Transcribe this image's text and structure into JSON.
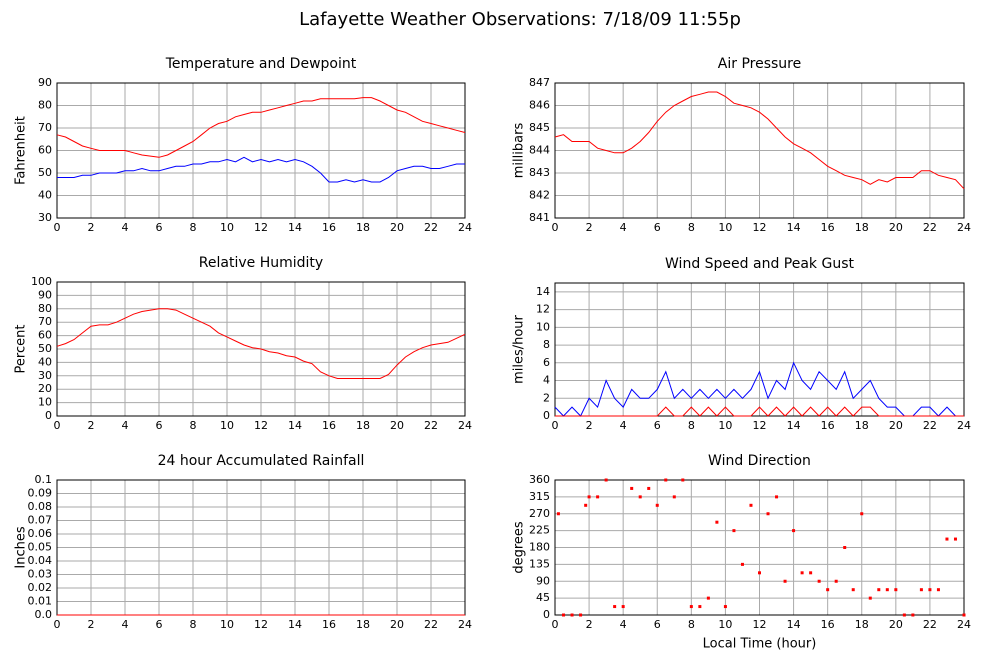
{
  "title": "Lafayette Weather Observations: 7/18/09 11:55p",
  "chart_data": [
    {
      "type": "line",
      "title": "Temperature and Dewpoint",
      "y_label": "Fahrenheit",
      "x": [
        0,
        0.5,
        1,
        1.5,
        2,
        2.5,
        3,
        3.5,
        4,
        4.5,
        5,
        5.5,
        6,
        6.5,
        7,
        7.5,
        8,
        8.5,
        9,
        9.5,
        10,
        10.5,
        11,
        11.5,
        12,
        12.5,
        13,
        13.5,
        14,
        14.5,
        15,
        15.5,
        16,
        16.5,
        17,
        17.5,
        18,
        18.5,
        19,
        19.5,
        20,
        20.5,
        21,
        21.5,
        22,
        22.5,
        23,
        23.5,
        24
      ],
      "series": [
        {
          "color": "#ff0000",
          "values": [
            67,
            66,
            64,
            62,
            61,
            60,
            60,
            60,
            60,
            59,
            58,
            57.5,
            57,
            58,
            60,
            62,
            64,
            67,
            70,
            72,
            73,
            75,
            76,
            77,
            77,
            78,
            79,
            80,
            81,
            82,
            82,
            83,
            83,
            83,
            83,
            83,
            83.5,
            83.5,
            82,
            80,
            78,
            77,
            75,
            73,
            72,
            71,
            70,
            69,
            68
          ]
        },
        {
          "color": "#0000ff",
          "values": [
            48,
            48,
            48,
            49,
            49,
            50,
            50,
            50,
            51,
            51,
            52,
            51,
            51,
            52,
            53,
            53,
            54,
            54,
            55,
            55,
            56,
            55,
            57,
            55,
            56,
            55,
            56,
            55,
            56,
            55,
            53,
            50,
            46,
            46,
            47,
            46,
            47,
            46,
            46,
            48,
            51,
            52,
            53,
            53,
            52,
            52,
            53,
            54,
            54
          ]
        }
      ],
      "xlim": [
        0,
        24
      ],
      "xticks": [
        0,
        2,
        4,
        6,
        8,
        10,
        12,
        14,
        16,
        18,
        20,
        22,
        24
      ],
      "ylim": [
        30,
        90
      ],
      "yticks": [
        30,
        40,
        50,
        60,
        70,
        80,
        90
      ],
      "grid": true
    },
    {
      "type": "line",
      "title": "Air Pressure",
      "y_label": "millibars",
      "x": [
        0,
        0.5,
        1,
        1.5,
        2,
        2.5,
        3,
        3.5,
        4,
        4.5,
        5,
        5.5,
        6,
        6.5,
        7,
        7.5,
        8,
        8.5,
        9,
        9.5,
        10,
        10.5,
        11,
        11.5,
        12,
        12.5,
        13,
        13.5,
        14,
        14.5,
        15,
        15.5,
        16,
        16.5,
        17,
        17.5,
        18,
        18.5,
        19,
        19.5,
        20,
        20.5,
        21,
        21.5,
        22,
        22.5,
        23,
        23.5,
        24
      ],
      "series": [
        {
          "color": "#ff0000",
          "values": [
            844.6,
            844.7,
            844.4,
            844.4,
            844.4,
            844.1,
            844.0,
            843.9,
            843.9,
            844.1,
            844.4,
            844.8,
            845.3,
            845.7,
            846.0,
            846.2,
            846.4,
            846.5,
            846.6,
            846.6,
            846.4,
            846.1,
            846.0,
            845.9,
            845.7,
            845.4,
            845.0,
            844.6,
            844.3,
            844.1,
            843.9,
            843.6,
            843.3,
            843.1,
            842.9,
            842.8,
            842.7,
            842.5,
            842.7,
            842.6,
            842.8,
            842.8,
            842.8,
            843.1,
            843.1,
            842.9,
            842.8,
            842.7,
            842.3
          ]
        }
      ],
      "xlim": [
        0,
        24
      ],
      "xticks": [
        0,
        2,
        4,
        6,
        8,
        10,
        12,
        14,
        16,
        18,
        20,
        22,
        24
      ],
      "ylim": [
        841,
        847
      ],
      "yticks": [
        841,
        842,
        843,
        844,
        845,
        846,
        847
      ],
      "grid": true
    },
    {
      "type": "line",
      "title": "Relative Humidity",
      "y_label": "Percent",
      "x": [
        0,
        0.5,
        1,
        1.5,
        2,
        2.5,
        3,
        3.5,
        4,
        4.5,
        5,
        5.5,
        6,
        6.5,
        7,
        7.5,
        8,
        8.5,
        9,
        9.5,
        10,
        10.5,
        11,
        11.5,
        12,
        12.5,
        13,
        13.5,
        14,
        14.5,
        15,
        15.5,
        16,
        16.5,
        17,
        17.5,
        18,
        18.5,
        19,
        19.5,
        20,
        20.5,
        21,
        21.5,
        22,
        22.5,
        23,
        23.5,
        24
      ],
      "series": [
        {
          "color": "#ff0000",
          "values": [
            52,
            54,
            57,
            62,
            67,
            68,
            68,
            70,
            73,
            76,
            78,
            79,
            80,
            80,
            79,
            76,
            73,
            70,
            67,
            62,
            59,
            56,
            53,
            51,
            50,
            48,
            47,
            45,
            44,
            41,
            39,
            33,
            30,
            28,
            28,
            28,
            28,
            28,
            28,
            31,
            38,
            44,
            48,
            51,
            53,
            54,
            55,
            58,
            61
          ]
        }
      ],
      "xlim": [
        0,
        24
      ],
      "xticks": [
        0,
        2,
        4,
        6,
        8,
        10,
        12,
        14,
        16,
        18,
        20,
        22,
        24
      ],
      "ylim": [
        0,
        100
      ],
      "yticks": [
        0,
        10,
        20,
        30,
        40,
        50,
        60,
        70,
        80,
        90,
        100
      ],
      "grid": true
    },
    {
      "type": "line",
      "title": "Wind Speed and Peak Gust",
      "y_label": "miles/hour",
      "x": [
        0,
        0.5,
        1,
        1.5,
        2,
        2.5,
        3,
        3.5,
        4,
        4.5,
        5,
        5.5,
        6,
        6.5,
        7,
        7.5,
        8,
        8.5,
        9,
        9.5,
        10,
        10.5,
        11,
        11.5,
        12,
        12.5,
        13,
        13.5,
        14,
        14.5,
        15,
        15.5,
        16,
        16.5,
        17,
        17.5,
        18,
        18.5,
        19,
        19.5,
        20,
        20.5,
        21,
        21.5,
        22,
        22.5,
        23,
        23.5,
        24
      ],
      "series": [
        {
          "color": "#0000ff",
          "values": [
            1,
            0,
            1,
            0,
            2,
            1,
            4,
            2,
            1,
            3,
            2,
            2,
            3,
            5,
            2,
            3,
            2,
            3,
            2,
            3,
            2,
            3,
            2,
            3,
            5,
            2,
            4,
            3,
            6,
            4,
            3,
            5,
            4,
            3,
            5,
            2,
            3,
            4,
            2,
            1,
            1,
            0,
            0,
            1,
            1,
            0,
            1,
            0,
            0
          ]
        },
        {
          "color": "#ff0000",
          "values": [
            0,
            0,
            0,
            0,
            0,
            0,
            0,
            0,
            0,
            0,
            0,
            0,
            0,
            1,
            0,
            0,
            1,
            0,
            1,
            0,
            1,
            0,
            0,
            0,
            1,
            0,
            1,
            0,
            1,
            0,
            1,
            0,
            1,
            0,
            1,
            0,
            1,
            1,
            0,
            0,
            0,
            0,
            0,
            0,
            0,
            0,
            0,
            0,
            0
          ]
        }
      ],
      "xlim": [
        0,
        24
      ],
      "xticks": [
        0,
        2,
        4,
        6,
        8,
        10,
        12,
        14,
        16,
        18,
        20,
        22,
        24
      ],
      "ylim": [
        0,
        15
      ],
      "yticks": [
        0,
        2,
        4,
        6,
        8,
        10,
        12,
        14
      ],
      "grid": true
    },
    {
      "type": "line",
      "title": "24 hour Accumulated Rainfall",
      "y_label": "Inches",
      "x": [
        0,
        24
      ],
      "series": [
        {
          "color": "#ff0000",
          "values": [
            0,
            0
          ]
        }
      ],
      "xlim": [
        0,
        24
      ],
      "xticks": [
        0,
        2,
        4,
        6,
        8,
        10,
        12,
        14,
        16,
        18,
        20,
        22,
        24
      ],
      "ylim": [
        0,
        0.1
      ],
      "yticks": [
        {
          "value": 0,
          "label": "0.0"
        },
        0.01,
        0.02,
        0.03,
        0.04,
        0.05,
        0.06,
        0.07,
        0.08,
        0.09,
        0.1
      ],
      "grid": true
    },
    {
      "type": "scatter",
      "title": "Wind Direction",
      "y_label": "degrees",
      "x_label": "Local Time (hour)",
      "x": [
        0.2,
        0.5,
        1,
        1.5,
        1.8,
        2,
        2.5,
        3,
        3.5,
        4,
        4.5,
        5,
        5.5,
        6,
        6.5,
        7,
        7.5,
        8,
        8.5,
        9,
        9.5,
        10,
        10.5,
        11,
        11.5,
        12,
        12.5,
        13,
        13.5,
        14,
        14.5,
        15,
        15.5,
        16,
        16.5,
        17,
        17.5,
        18,
        18.5,
        19,
        19.5,
        20,
        20.5,
        21,
        21.5,
        22,
        22.5,
        23,
        23.5,
        24
      ],
      "values": [
        270,
        0,
        0,
        0,
        292.5,
        315,
        315,
        360,
        22.5,
        22.5,
        337.5,
        315,
        337.5,
        292.5,
        360,
        315,
        360,
        22.5,
        22.5,
        45,
        247.5,
        22.5,
        225,
        135,
        292.5,
        112.5,
        270,
        315,
        90,
        225,
        112.5,
        112.5,
        90,
        67.5,
        90,
        180,
        67.5,
        270,
        45,
        67.5,
        67.5,
        67.5,
        0,
        0,
        67.5,
        67.5,
        67.5,
        202.5,
        202.5,
        0
      ],
      "color": "#ff0000",
      "xlim": [
        0,
        24
      ],
      "xticks": [
        0,
        2,
        4,
        6,
        8,
        10,
        12,
        14,
        16,
        18,
        20,
        22,
        24
      ],
      "ylim": [
        0,
        360
      ],
      "yticks": [
        0,
        45,
        90,
        135,
        180,
        225,
        270,
        315,
        360
      ],
      "grid": true
    }
  ]
}
